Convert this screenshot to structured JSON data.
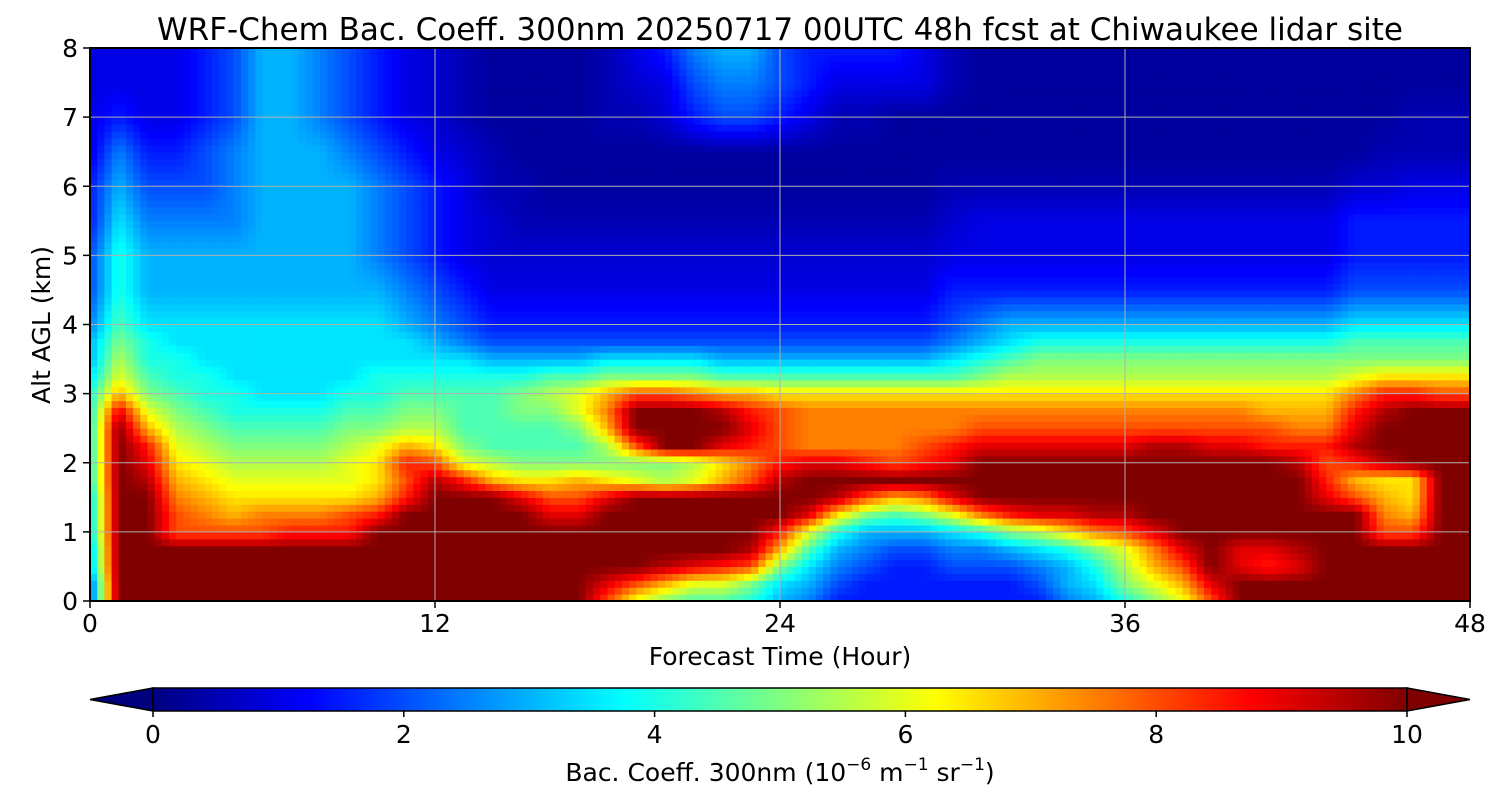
{
  "chart_data": {
    "type": "heatmap",
    "title": "WRF-Chem Bac. Coeff. 300nm  20250717 00UTC 48h fcst at Chiwaukee lidar site",
    "xlabel": "Forecast Time (Hour)",
    "ylabel": "Alt AGL (km)",
    "xlim": [
      0,
      48
    ],
    "ylim": [
      0,
      8
    ],
    "xticks": [
      0,
      12,
      24,
      36,
      48
    ],
    "yticks": [
      0,
      1,
      2,
      3,
      4,
      5,
      6,
      7,
      8
    ],
    "grid": true,
    "colormap": "jet",
    "colorbar": {
      "label_prefix": "Bac. Coeff. 300nm  (10",
      "label_exp1": "−6",
      "label_unit_m": " m",
      "label_exp2": "−1",
      "label_unit_sr": " sr",
      "label_exp3": "−1",
      "label_suffix": ")",
      "ticks": [
        0,
        2,
        4,
        6,
        8,
        10
      ],
      "min": 0,
      "max": 10,
      "extend": "both",
      "orientation": "horizontal"
    },
    "x": [
      0,
      1,
      2,
      3,
      4,
      5,
      6,
      7,
      8,
      9,
      10,
      11,
      12,
      13,
      14,
      15,
      16,
      17,
      18,
      19,
      20,
      21,
      22,
      23,
      24,
      25,
      26,
      27,
      28,
      29,
      30,
      31,
      32,
      33,
      34,
      35,
      36,
      37,
      38,
      39,
      40,
      41,
      42,
      43,
      44,
      45,
      46,
      47,
      48
    ],
    "y": [
      0,
      0.25,
      0.5,
      0.75,
      1,
      1.25,
      1.5,
      1.75,
      2,
      2.25,
      2.5,
      2.75,
      3,
      3.25,
      3.5,
      3.75,
      4,
      4.5,
      5,
      5.5,
      6,
      6.5,
      7,
      7.5,
      8
    ],
    "z_note": "values in 1e-6 m-1 sr-1; rows are altitude levels (y), columns are forecast hours (x)",
    "z": [
      [
        2,
        10,
        10,
        10,
        10,
        10,
        10,
        10,
        10,
        10,
        10,
        10,
        10,
        10,
        10,
        10,
        10,
        10,
        8,
        6,
        5,
        4.5,
        4.5,
        4,
        3,
        2.5,
        1.5,
        1.5,
        1.5,
        1.5,
        1.5,
        1.5,
        1.5,
        1.5,
        2.5,
        3,
        4,
        5,
        6,
        8,
        10,
        10,
        10,
        10,
        10,
        10,
        10,
        10,
        10
      ],
      [
        2,
        10,
        10,
        10,
        10,
        10,
        10,
        10,
        10,
        10,
        10,
        10,
        10,
        10,
        10,
        10,
        10,
        10,
        9,
        8,
        7,
        6,
        6,
        5,
        3.5,
        3,
        2,
        1.5,
        1.5,
        1.5,
        1.5,
        1.5,
        1.5,
        2,
        3,
        3.5,
        5,
        6,
        7,
        9,
        10,
        10,
        10,
        10,
        10,
        10,
        10,
        10,
        10
      ],
      [
        3,
        10,
        10,
        10,
        10,
        10,
        10,
        10,
        10,
        10,
        10,
        10,
        10,
        10,
        10,
        10,
        10,
        10,
        10,
        10,
        9.5,
        9,
        8.5,
        8,
        5,
        3.5,
        2.5,
        2,
        1.5,
        1.5,
        2,
        2,
        2,
        2.5,
        3,
        4,
        5.5,
        7,
        8,
        10,
        9,
        8.5,
        9,
        10,
        10,
        10,
        10,
        10,
        10
      ],
      [
        3,
        10,
        10,
        10,
        10,
        10,
        10,
        10,
        10,
        10,
        10,
        10,
        10,
        10,
        10,
        10,
        10,
        10,
        10,
        10,
        10,
        10,
        10,
        9.5,
        7,
        4.5,
        3,
        2.5,
        2,
        2,
        2.5,
        2.5,
        3,
        3.5,
        4,
        5,
        6,
        7.5,
        9,
        10,
        9,
        9,
        9.5,
        10,
        10,
        10,
        10,
        10,
        10
      ],
      [
        3.5,
        10,
        10,
        8,
        8,
        8,
        8,
        8.5,
        8.5,
        8.5,
        10,
        10,
        10,
        10,
        10,
        10,
        10,
        10,
        10,
        10,
        10,
        10,
        10,
        10,
        8.5,
        6,
        4,
        3,
        3,
        3,
        3.5,
        4,
        5,
        5.5,
        6.5,
        7.5,
        8,
        9,
        10,
        10,
        10,
        10,
        10,
        10,
        10,
        8,
        8,
        10,
        10
      ],
      [
        3.5,
        10,
        10,
        8,
        7.5,
        7,
        7.5,
        7.5,
        7.5,
        8,
        8.5,
        10,
        10,
        10,
        10,
        10,
        9,
        9,
        10,
        10,
        10,
        10,
        10,
        10,
        10,
        9,
        6.5,
        5,
        4.5,
        5,
        6,
        7.5,
        8.5,
        9,
        9,
        9.5,
        9.5,
        10,
        10,
        10,
        10,
        10,
        10,
        10,
        10,
        7.5,
        7,
        10,
        10
      ],
      [
        3.5,
        10,
        10,
        7.5,
        7,
        6.5,
        6.5,
        6.5,
        6.5,
        6.5,
        7,
        8.5,
        10,
        10,
        10,
        9,
        8,
        8,
        9,
        10,
        10,
        10,
        10,
        10,
        10,
        10,
        9.5,
        8,
        7,
        7.5,
        9,
        10,
        10,
        10,
        10,
        10,
        10,
        10,
        10,
        10,
        10,
        10,
        10,
        9,
        8,
        7,
        6.5,
        10,
        10
      ],
      [
        4,
        10,
        9.5,
        7,
        6.5,
        6,
        6,
        6,
        6,
        6,
        6.5,
        8,
        9.5,
        8.5,
        7,
        6.5,
        6.5,
        7,
        6.5,
        6,
        5.5,
        6,
        7,
        8,
        9.5,
        10,
        10,
        10,
        10,
        10,
        10,
        10,
        10,
        10,
        10,
        10,
        10,
        10,
        10,
        10,
        10,
        10,
        10,
        8.5,
        7,
        6.5,
        6.5,
        10,
        10
      ],
      [
        4,
        10,
        9,
        6.5,
        6,
        5.5,
        5.5,
        5.5,
        5.5,
        6,
        6.5,
        8.5,
        8,
        6,
        5.5,
        5,
        5,
        5,
        5,
        5,
        5,
        5.5,
        6.5,
        7.5,
        8.5,
        9,
        9,
        8.5,
        8,
        8.5,
        9,
        10,
        10,
        10,
        10,
        10,
        10,
        10,
        10,
        10,
        10,
        10,
        9.5,
        8,
        8.5,
        9.5,
        10,
        10,
        10
      ],
      [
        4,
        10,
        8.5,
        6,
        5.5,
        5,
        5,
        5,
        5,
        5.5,
        6,
        7,
        6.5,
        5,
        4.5,
        4.5,
        4.5,
        4.5,
        5.5,
        8,
        10,
        10,
        9,
        8.5,
        8,
        7.5,
        7.5,
        7.5,
        7.5,
        8,
        8.5,
        9,
        9,
        9,
        9,
        9,
        9,
        9.5,
        9.5,
        9,
        9,
        8.5,
        8.5,
        8.5,
        9.5,
        10,
        10,
        10,
        10
      ],
      [
        4,
        10,
        7,
        5.5,
        5,
        4.5,
        4.5,
        4.5,
        4.5,
        5,
        5,
        5.5,
        5.5,
        4.5,
        4.5,
        4.5,
        4.5,
        5,
        7,
        10,
        10,
        10,
        10,
        9,
        8,
        7.5,
        7.5,
        7.5,
        7.5,
        7.5,
        7.5,
        8,
        8,
        8,
        8,
        8,
        8,
        8,
        8,
        8,
        8,
        8,
        7.5,
        7.5,
        9,
        10,
        10,
        10,
        10
      ],
      [
        4,
        9,
        6,
        5,
        4.5,
        4,
        4,
        4,
        4,
        4.5,
        4.5,
        5,
        5,
        4.5,
        4.5,
        5,
        5,
        6,
        7.5,
        10,
        10,
        10,
        9.5,
        8.5,
        8,
        7.5,
        7.5,
        7.5,
        7.5,
        7.5,
        7.5,
        7.5,
        7.5,
        7.5,
        7.5,
        7.5,
        7.5,
        7.5,
        7.5,
        7.5,
        7.5,
        7,
        7,
        7,
        8.5,
        9.5,
        10,
        10,
        10
      ],
      [
        4,
        7,
        5,
        4.5,
        4,
        4,
        3.5,
        3.5,
        3.5,
        4,
        4,
        4.5,
        4.5,
        4.5,
        4.5,
        5,
        5.5,
        6,
        7,
        8,
        8,
        7.5,
        7,
        7,
        6.5,
        6.5,
        6.5,
        6.5,
        6.5,
        6.5,
        6.5,
        6.5,
        6.5,
        6.5,
        6.5,
        6.5,
        6.5,
        6.5,
        6.5,
        6.5,
        6.5,
        6.5,
        6.5,
        6.5,
        7.5,
        8.5,
        8.5,
        8,
        8
      ],
      [
        3.5,
        6,
        4.5,
        4,
        4,
        3.5,
        3.5,
        3.5,
        3.5,
        3.5,
        4,
        4,
        4,
        4,
        4,
        4,
        4.5,
        4.5,
        5,
        5,
        5,
        5,
        4.5,
        4.5,
        4.5,
        4.5,
        4.5,
        4.5,
        4.5,
        4.5,
        4.5,
        5,
        5.5,
        5.5,
        5.5,
        5.5,
        5.5,
        5.5,
        5.5,
        5.5,
        5.5,
        5.5,
        5.5,
        5.5,
        6,
        6.5,
        6.5,
        6.5,
        6.5
      ],
      [
        3,
        5.5,
        4,
        4,
        3.5,
        3.5,
        3.5,
        3.5,
        3.5,
        3.5,
        3.5,
        3.5,
        3.5,
        3.5,
        3,
        3,
        3,
        3,
        3.5,
        3.5,
        3.5,
        3.5,
        3,
        3,
        3,
        3,
        3,
        3,
        3,
        3,
        3.5,
        4,
        4.5,
        5,
        5,
        5,
        5,
        5,
        5,
        5,
        5,
        5,
        5,
        5,
        5,
        5,
        5,
        5,
        5
      ],
      [
        3,
        5,
        4,
        3.5,
        3.5,
        3.5,
        3.5,
        3.5,
        3.5,
        3.5,
        3.5,
        3.5,
        3,
        2.5,
        2,
        2,
        2,
        2,
        2,
        2,
        2,
        2,
        2,
        2,
        2,
        2,
        2,
        2,
        2,
        2,
        2.5,
        3,
        3.5,
        4,
        4,
        4,
        4,
        4,
        4,
        4,
        4,
        4,
        4,
        4,
        4.5,
        4.5,
        4.5,
        4.5,
        4.5
      ],
      [
        2.5,
        4.5,
        3.5,
        3.5,
        3.5,
        3.5,
        3.5,
        3.5,
        3.5,
        3.5,
        3.5,
        3,
        2.5,
        2,
        1.5,
        1.5,
        1.5,
        1.5,
        1.5,
        1.5,
        1.5,
        1.5,
        1.5,
        1.5,
        1.5,
        1.5,
        1.5,
        1.5,
        1.5,
        1.5,
        2,
        2.5,
        3,
        3,
        3,
        3,
        3,
        3,
        3,
        3,
        3,
        3,
        3,
        3,
        3.5,
        3.5,
        3.5,
        3.5,
        3.5
      ],
      [
        2,
        4,
        3,
        3,
        3,
        3,
        3,
        3,
        3,
        3,
        3,
        2.5,
        2,
        1.5,
        1,
        1,
        1,
        1,
        1,
        1,
        1,
        1,
        1,
        1,
        1,
        1,
        1,
        1,
        1,
        1,
        1.5,
        1.5,
        1.5,
        1.5,
        1.5,
        1.5,
        1.5,
        1.5,
        1.5,
        1.5,
        1.5,
        1.5,
        1.5,
        1.5,
        2,
        2,
        2,
        2,
        2
      ],
      [
        2,
        4,
        3,
        3,
        3,
        3,
        3,
        3,
        3,
        3,
        2.5,
        2,
        1.5,
        1,
        0.8,
        0.8,
        0.8,
        0.8,
        0.8,
        0.8,
        0.8,
        0.8,
        0.8,
        0.8,
        0.8,
        0.8,
        0.8,
        0.8,
        0.8,
        0.8,
        1,
        1,
        1,
        1,
        1,
        1,
        1,
        1,
        1,
        1,
        1,
        1,
        1,
        1,
        1.5,
        1.5,
        1.5,
        1.5,
        1.5
      ],
      [
        1.5,
        3.5,
        2.5,
        2.5,
        2.5,
        2.5,
        3,
        3,
        3,
        3,
        2.5,
        2,
        1.5,
        1,
        0.8,
        0.5,
        0.5,
        0.5,
        0.5,
        0.5,
        0.5,
        0.5,
        0.5,
        0.5,
        0.5,
        0.5,
        0.5,
        0.5,
        0.5,
        0.5,
        0.8,
        1,
        1,
        1,
        1,
        1,
        1,
        1,
        1,
        1,
        1,
        1,
        1,
        1,
        1.5,
        1.5,
        1.5,
        1.5,
        1.5
      ],
      [
        1.5,
        3,
        2,
        2,
        2,
        2.5,
        3,
        3,
        3,
        3,
        2.5,
        2,
        1.5,
        1,
        0.5,
        0.5,
        0.3,
        0.3,
        0.3,
        0.3,
        0.3,
        0.3,
        0.3,
        0.3,
        0.3,
        0.3,
        0.3,
        0.3,
        0.3,
        0.3,
        0.5,
        0.5,
        0.5,
        0.5,
        0.5,
        0.5,
        0.5,
        0.5,
        0.5,
        0.5,
        0.5,
        0.5,
        0.5,
        0.5,
        0.8,
        0.8,
        1,
        1,
        1
      ],
      [
        1,
        2.5,
        1.5,
        1.5,
        2,
        2.5,
        3,
        3,
        3,
        2.5,
        2,
        1.5,
        1,
        0.8,
        0.5,
        0.3,
        0.3,
        0.3,
        0.3,
        0.3,
        0.3,
        0.3,
        0.3,
        0.3,
        0.3,
        0.3,
        0.3,
        0.3,
        0.3,
        0.3,
        0.3,
        0.3,
        0.3,
        0.3,
        0.3,
        0.3,
        0.3,
        0.3,
        0.3,
        0.3,
        0.3,
        0.3,
        0.3,
        0.3,
        0.3,
        0.5,
        0.5,
        0.5,
        0.5
      ],
      [
        1,
        1.5,
        1,
        1,
        1.5,
        2,
        3,
        3,
        2.5,
        2,
        1.5,
        1,
        0.8,
        0.5,
        0.3,
        0.3,
        0.3,
        0.3,
        0.5,
        0.5,
        0.8,
        1.5,
        2,
        2,
        1.5,
        1,
        0.5,
        0.5,
        0.3,
        0.3,
        0.3,
        0.3,
        0.3,
        0.3,
        0.3,
        0.3,
        0.3,
        0.3,
        0.3,
        0.3,
        0.3,
        0.3,
        0.3,
        0.3,
        0.3,
        0.3,
        0.5,
        0.5,
        0.5
      ],
      [
        1,
        1,
        1,
        1,
        1.5,
        2,
        3,
        3,
        2.5,
        2,
        1.5,
        1,
        0.8,
        0.5,
        0.3,
        0.3,
        0.3,
        0.3,
        0.5,
        0.8,
        1,
        2,
        2.5,
        2.5,
        2,
        1.5,
        1,
        1,
        1,
        1,
        0.5,
        0.3,
        0.3,
        0.3,
        0.3,
        0.3,
        0.3,
        0.3,
        0.3,
        0.3,
        0.3,
        0.3,
        0.3,
        0.3,
        0.3,
        0.3,
        0.3,
        0.3,
        0.3
      ],
      [
        1,
        1,
        1,
        1,
        1.5,
        2,
        3,
        3,
        2.5,
        2,
        1.5,
        1,
        0.8,
        0.5,
        0.3,
        0.3,
        0.3,
        0.3,
        0.5,
        1,
        1.5,
        2.5,
        3,
        3,
        2,
        1.5,
        1.5,
        1.5,
        1.5,
        1,
        0.5,
        0.3,
        0.3,
        0.3,
        0.3,
        0.3,
        0.3,
        0.3,
        0.3,
        0.3,
        0.3,
        0.3,
        0.3,
        0.3,
        0.3,
        0.3,
        0.3,
        0.3,
        0.3
      ]
    ]
  }
}
